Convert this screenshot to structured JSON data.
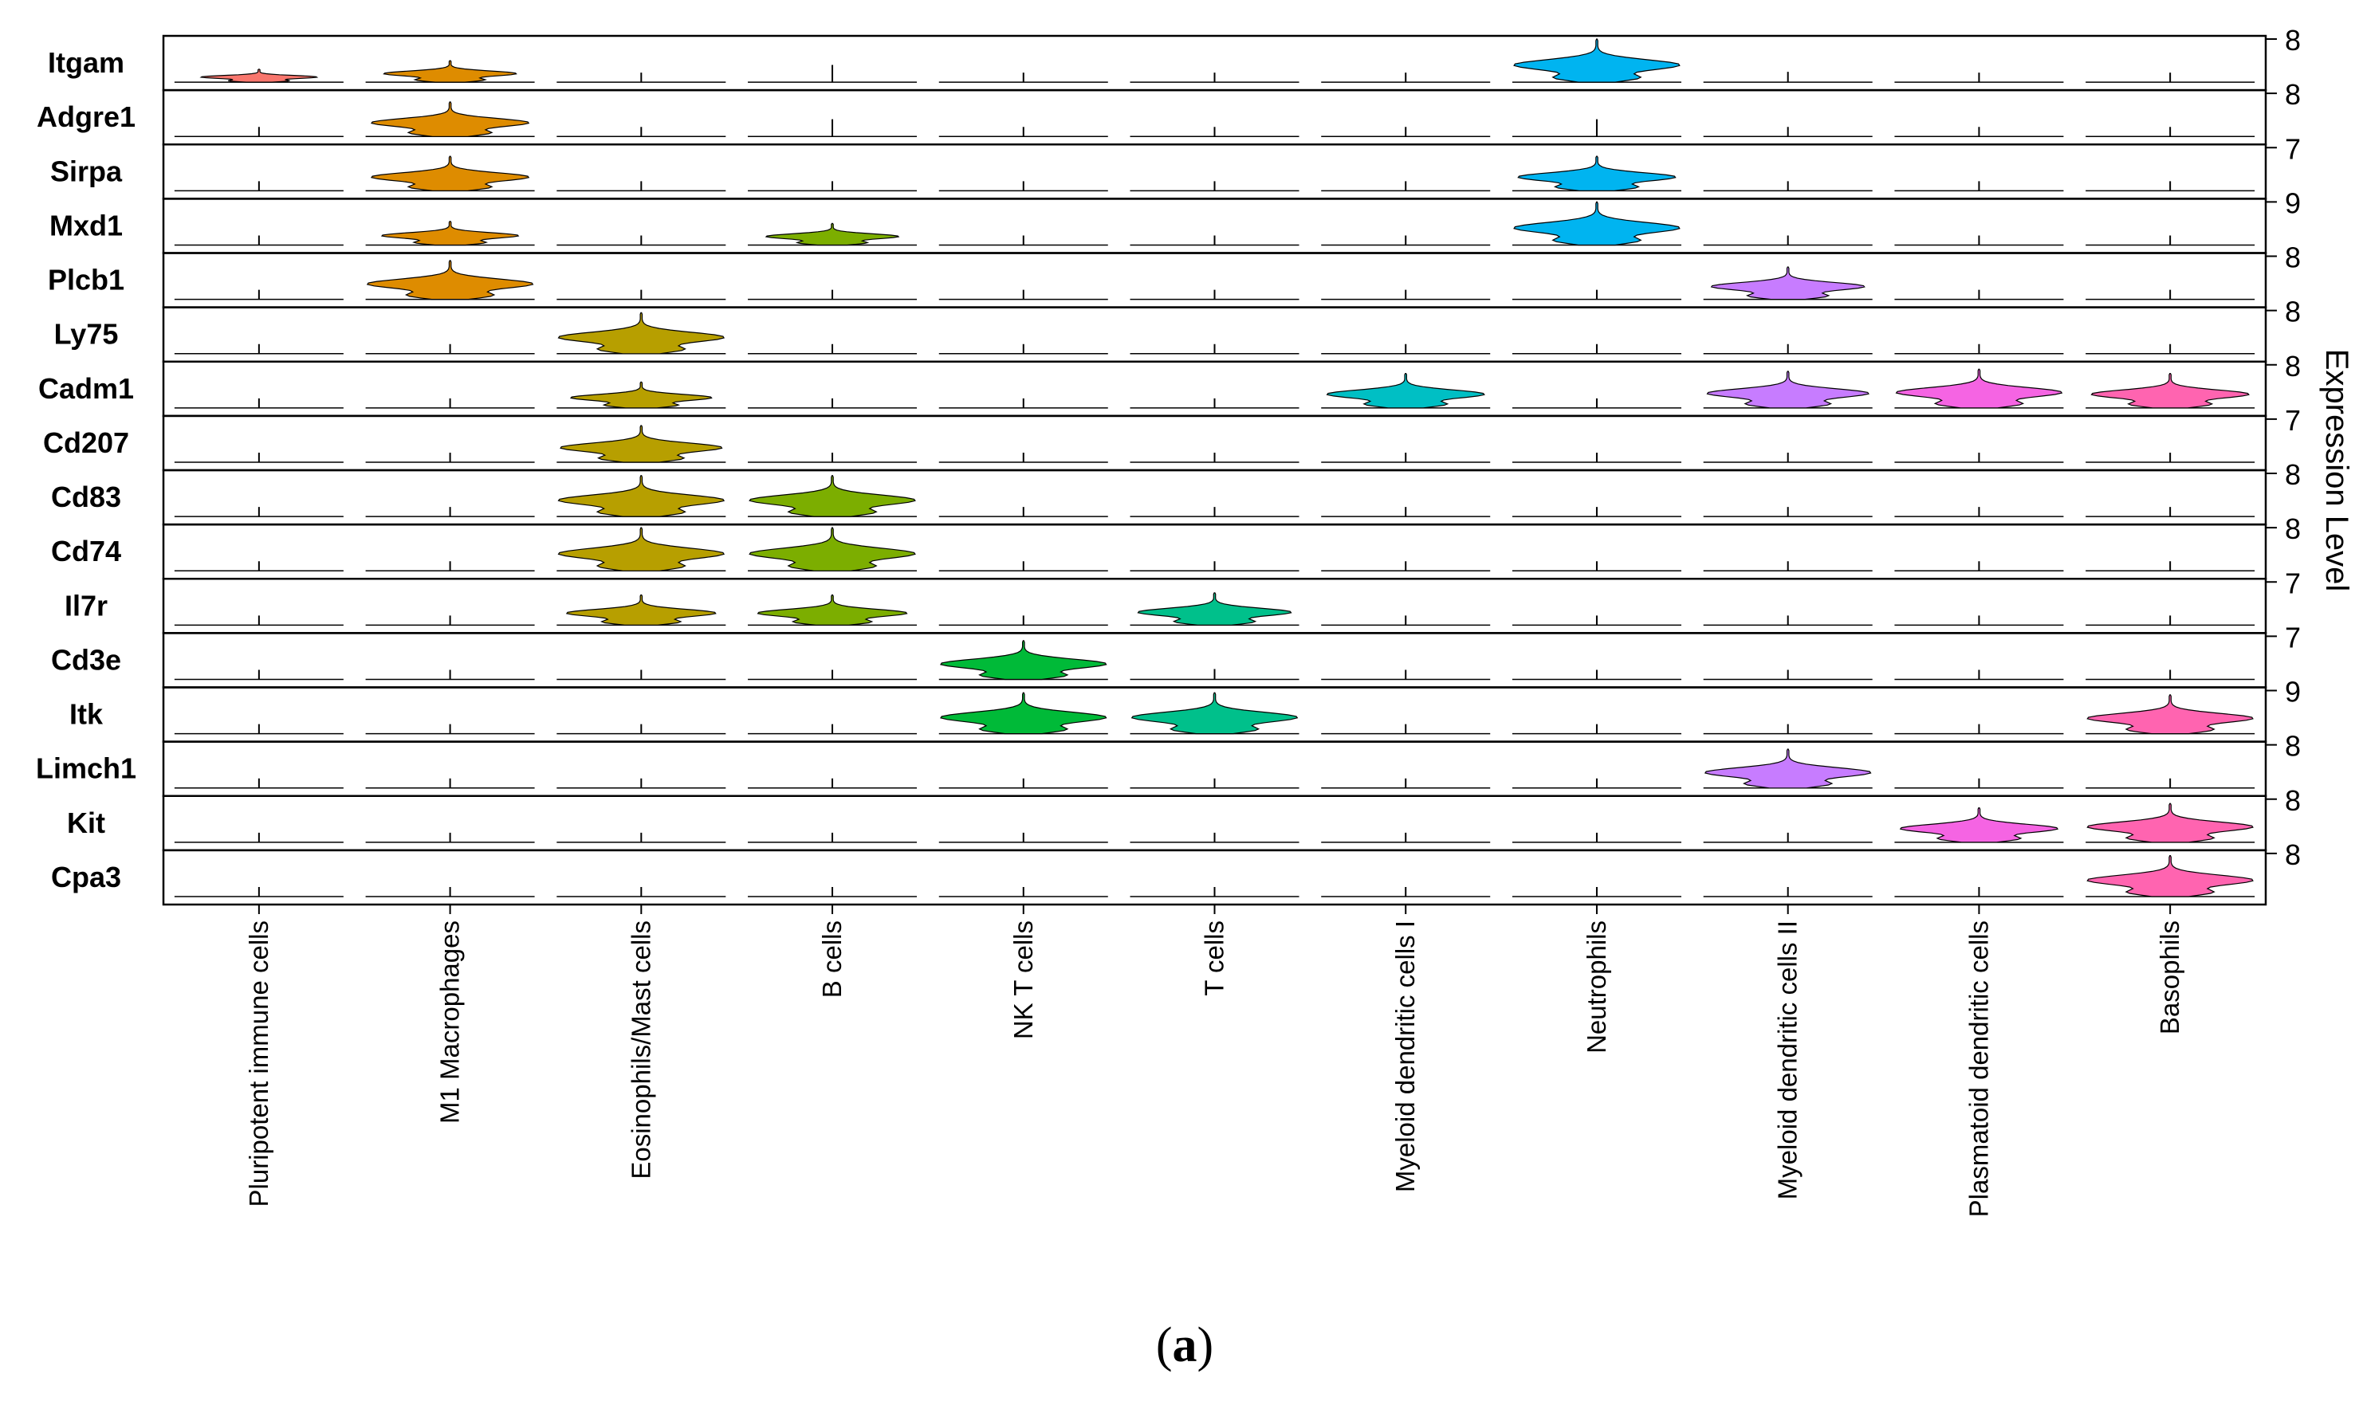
{
  "chart_data": {
    "type": "stacked-violin",
    "caption_open": "(",
    "caption_letter": "a",
    "caption_close": ")",
    "right_axis_label": "Expression Level",
    "categories": [
      "Pluripotent immune cells",
      "M1 Macrophages",
      "Eosinophils/Mast cells",
      "B cells",
      "NK T cells",
      "T cells",
      "Myeloid dendritic cells I",
      "Neutrophils",
      "Myeloid dendritic cells II",
      "Plasmatoid dendritic cells",
      "Basophils"
    ],
    "category_colors": [
      "#F8766D",
      "#DE8C00",
      "#B79F00",
      "#7CAE00",
      "#00BA38",
      "#00C08B",
      "#00BFC4",
      "#00B4F0",
      "#C77CFF",
      "#F564E3",
      "#FF64B0"
    ],
    "genes": [
      "Itgam",
      "Adgre1",
      "Sirpa",
      "Mxd1",
      "Plcb1",
      "Ly75",
      "Cadm1",
      "Cd207",
      "Cd83",
      "Cd74",
      "Il7r",
      "Cd3e",
      "Itk",
      "Limch1",
      "Kit",
      "Cpa3"
    ],
    "max_expression": [
      "8",
      "8",
      "7",
      "9",
      "8",
      "8",
      "8",
      "7",
      "8",
      "8",
      "7",
      "7",
      "9",
      "8",
      "8",
      "8"
    ],
    "expression": [
      [
        0.3,
        0.5,
        0.05,
        0.1,
        0.04,
        0.04,
        0.04,
        1.0,
        0.06,
        0.02,
        0.04
      ],
      [
        0.05,
        0.8,
        0.05,
        0.1,
        0.04,
        0.04,
        0.02,
        0.1,
        0.04,
        0.04,
        0.04
      ],
      [
        0.05,
        0.8,
        0.05,
        0.05,
        0.04,
        0.04,
        0.02,
        0.8,
        0.04,
        0.05,
        0.05
      ],
      [
        0.05,
        0.55,
        0.05,
        0.5,
        0.04,
        0.04,
        0.02,
        1.0,
        0.04,
        0.04,
        0.05
      ],
      [
        0.05,
        0.9,
        0.05,
        0.05,
        0.04,
        0.04,
        0.02,
        0.05,
        0.75,
        0.02,
        0.05
      ],
      [
        0.05,
        0.05,
        0.95,
        0.04,
        0.04,
        0.04,
        0.02,
        0.04,
        0.04,
        0.02,
        0.02
      ],
      [
        0.05,
        0.05,
        0.6,
        0.04,
        0.04,
        0.04,
        0.8,
        0.04,
        0.85,
        0.9,
        0.8
      ],
      [
        0.05,
        0.05,
        0.85,
        0.04,
        0.04,
        0.02,
        0.02,
        0.04,
        0.02,
        0.02,
        0.02
      ],
      [
        0.05,
        0.05,
        0.95,
        0.95,
        0.04,
        0.04,
        0.02,
        0.04,
        0.02,
        0.02,
        0.02
      ],
      [
        0.05,
        0.05,
        1.0,
        1.0,
        0.04,
        0.04,
        0.02,
        0.04,
        0.04,
        0.04,
        0.02
      ],
      [
        0.05,
        0.05,
        0.7,
        0.7,
        0.04,
        0.75,
        0.02,
        0.02,
        0.02,
        0.02,
        0.02
      ],
      [
        0.04,
        0.04,
        0.04,
        0.04,
        0.9,
        0.06,
        0.02,
        0.02,
        0.02,
        0.02,
        0.02
      ],
      [
        0.04,
        0.04,
        0.04,
        0.04,
        0.95,
        0.95,
        0.02,
        0.02,
        0.02,
        0.02,
        0.9
      ],
      [
        0.04,
        0.04,
        0.04,
        0.04,
        0.04,
        0.04,
        0.04,
        0.02,
        0.9,
        0.02,
        0.02
      ],
      [
        0.04,
        0.04,
        0.04,
        0.04,
        0.04,
        0.04,
        0.02,
        0.04,
        0.02,
        0.8,
        0.9
      ],
      [
        0.04,
        0.02,
        0.02,
        0.02,
        0.02,
        0.02,
        0.04,
        0.02,
        0.04,
        0.02,
        0.95
      ]
    ]
  }
}
